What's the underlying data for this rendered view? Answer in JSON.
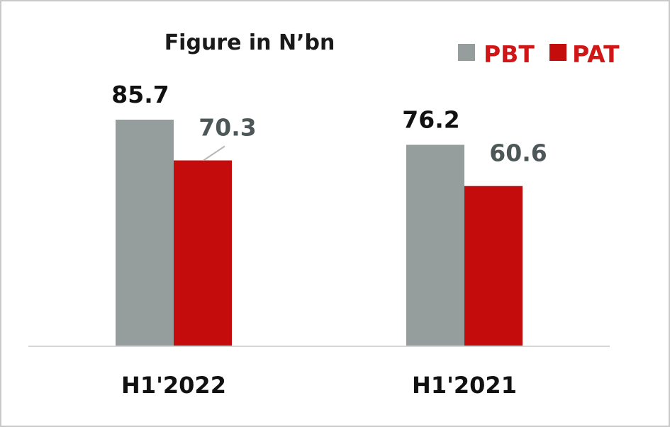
{
  "chart_data": {
    "type": "bar",
    "title": "Figure in N’bn",
    "categories": [
      "H1'2022",
      "H1'2021"
    ],
    "series": [
      {
        "name": "PBT",
        "values": [
          85.7,
          76.2
        ],
        "color": "#959e9d",
        "label_color": "#111111"
      },
      {
        "name": "PAT",
        "values": [
          70.3,
          60.6
        ],
        "color": "#c50c0c",
        "label_color": "#4e5757"
      }
    ],
    "ylim": [
      0,
      100
    ],
    "grid": false,
    "legend_position": "top-right",
    "legend_text_color": "#d01717",
    "xlabel": "",
    "ylabel": ""
  }
}
